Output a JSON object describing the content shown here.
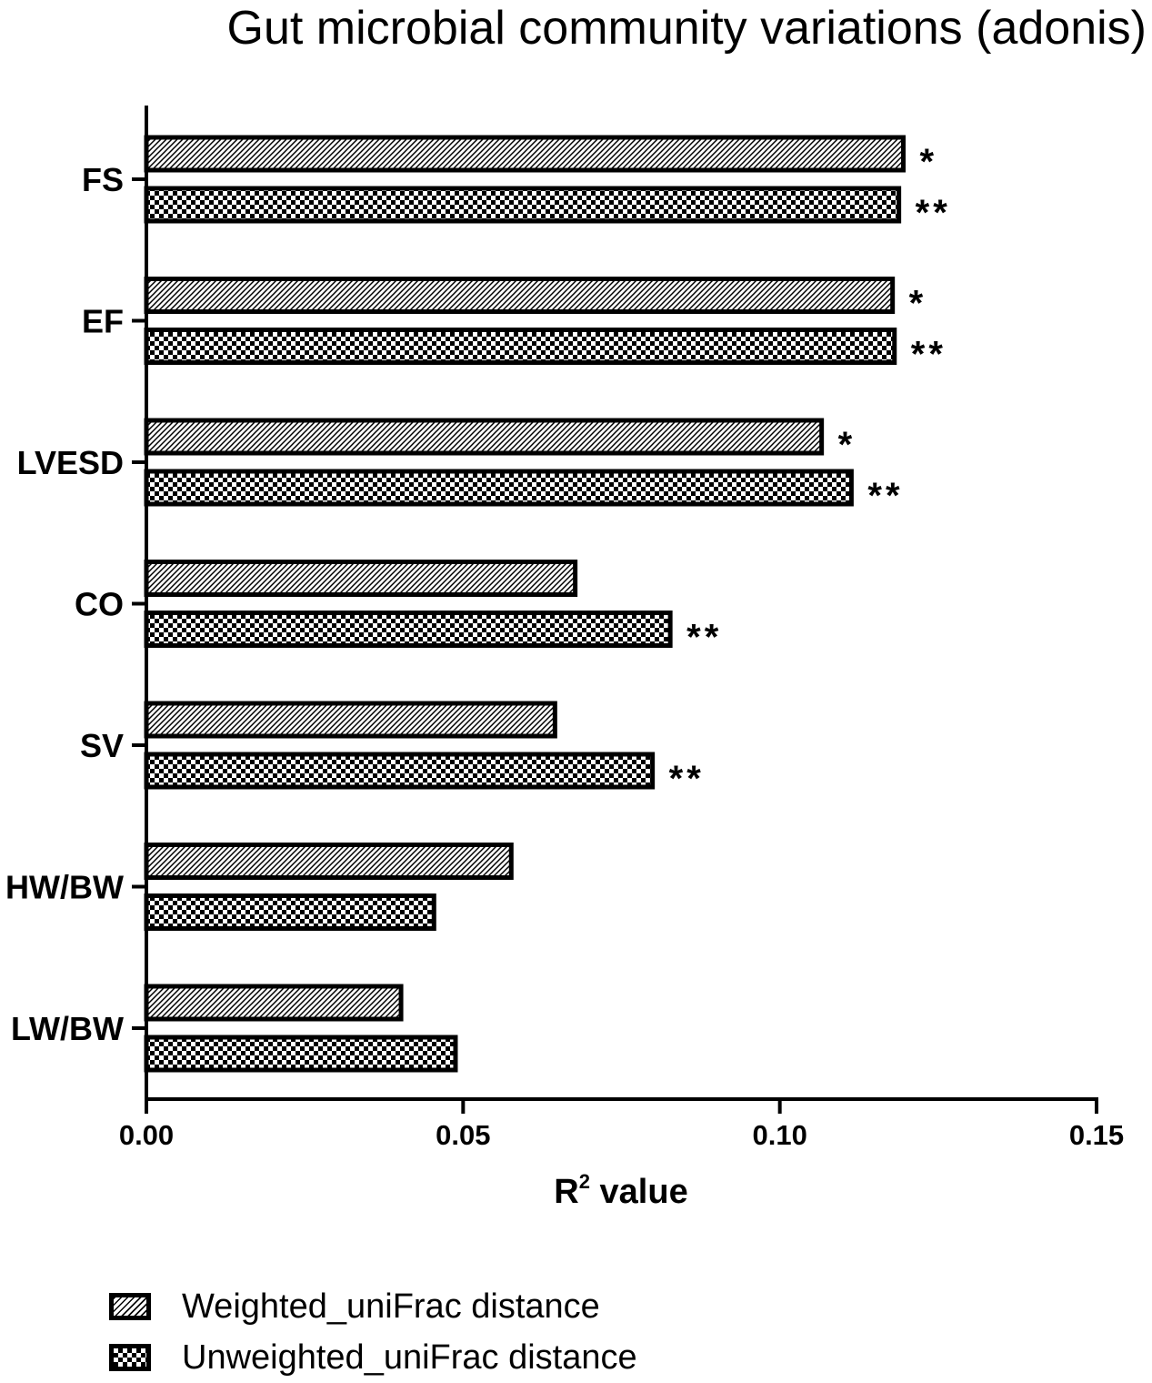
{
  "title": "Gut microbial community variations (adonis)",
  "chart_data": {
    "type": "bar",
    "orientation": "horizontal",
    "title": "Gut microbial community variations (adonis)",
    "xlabel_base": "R",
    "xlabel_sup": "2",
    "xlabel_rest": " value",
    "ylabel": "",
    "xlim": [
      0,
      0.15
    ],
    "xticks": [
      "0.00",
      "0.05",
      "0.10",
      "0.15"
    ],
    "grid": false,
    "legend_position": "bottom-left",
    "categories": [
      "FS",
      "EF",
      "LVESD",
      "CO",
      "SV",
      "HW/BW",
      "LW/BW"
    ],
    "series": [
      {
        "name": "Weighted_uniFrac distance",
        "pattern": "diagonal-hatch",
        "values": [
          0.1195,
          0.1178,
          0.1066,
          0.0677,
          0.0645,
          0.0576,
          0.0402
        ],
        "significance": [
          "*",
          "*",
          "*",
          "",
          "",
          "",
          ""
        ]
      },
      {
        "name": "Unweighted_uniFrac distance",
        "pattern": "checkerboard",
        "values": [
          0.1188,
          0.1181,
          0.1113,
          0.0827,
          0.0799,
          0.0454,
          0.0488
        ],
        "significance": [
          "**",
          "**",
          "**",
          "**",
          "**",
          "",
          ""
        ]
      }
    ]
  },
  "colors": {
    "bar_stroke": "#000000",
    "background": "#ffffff",
    "text": "#000000"
  }
}
